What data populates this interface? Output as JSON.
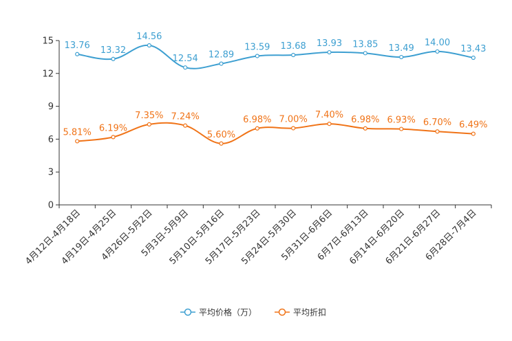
{
  "chart_data": {
    "type": "line",
    "title": "",
    "xlabel": "",
    "ylabel": "",
    "ylim": [
      0,
      15
    ],
    "yticks": [
      0,
      3,
      6,
      9,
      12,
      15
    ],
    "grid": false,
    "legend_position": "bottom-center",
    "categories": [
      "4月12日-4月18日",
      "4月19日-4月25日",
      "4月26日-5月2日",
      "5月3日-5月9日",
      "5月10日-5月16日",
      "5月17日-5月23日",
      "5月24日-5月30日",
      "5月31日-6月6日",
      "6月7日-6月13日",
      "6月14日-6月20日",
      "6月21日-6月27日",
      "6月28日-7月4日"
    ],
    "series": [
      {
        "name": "平均价格（万）",
        "color": "#3d9fd1",
        "values": [
          13.76,
          13.32,
          14.56,
          12.54,
          12.89,
          13.59,
          13.68,
          13.93,
          13.85,
          13.49,
          14.0,
          13.43
        ],
        "labels": [
          "13.76",
          "13.32",
          "14.56",
          "12.54",
          "12.89",
          "13.59",
          "13.68",
          "13.93",
          "13.85",
          "13.49",
          "14.00",
          "13.43"
        ]
      },
      {
        "name": "平均折扣",
        "color": "#f07317",
        "values": [
          5.81,
          6.19,
          7.35,
          7.24,
          5.6,
          6.98,
          7.0,
          7.4,
          6.98,
          6.93,
          6.7,
          6.49
        ],
        "labels": [
          "5.81%",
          "6.19%",
          "7.35%",
          "7.24%",
          "5.60%",
          "6.98%",
          "7.00%",
          "7.40%",
          "6.98%",
          "6.93%",
          "6.70%",
          "6.49%"
        ]
      }
    ]
  }
}
